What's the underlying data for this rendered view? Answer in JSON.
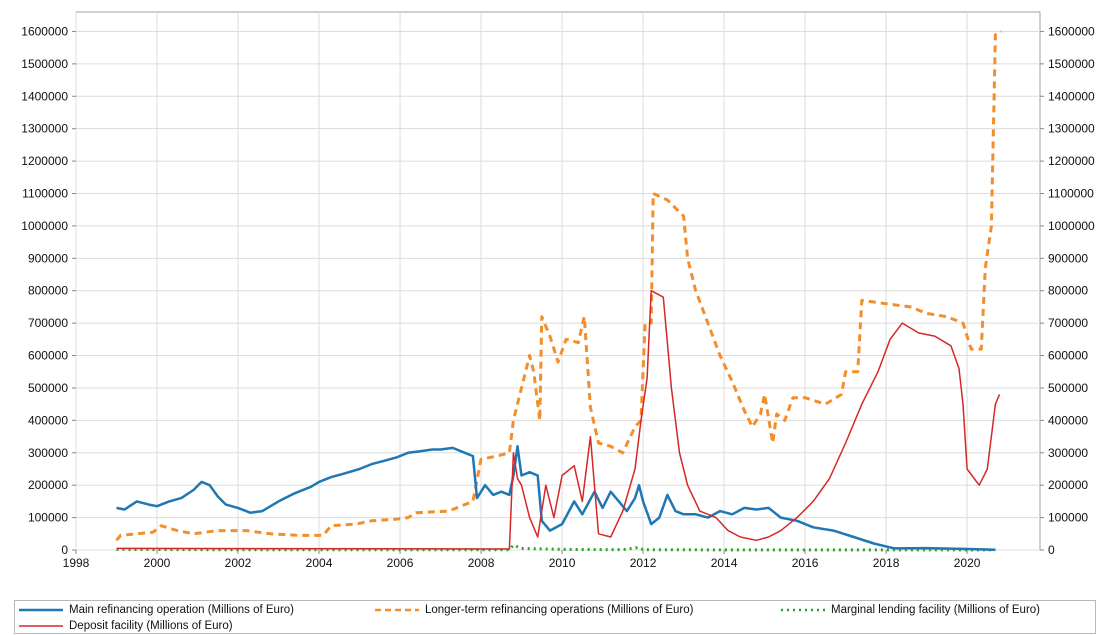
{
  "chart_data": {
    "type": "line",
    "x_ticks": [
      "1998",
      "2000",
      "2002",
      "2004",
      "2006",
      "2008",
      "2010",
      "2012",
      "2014",
      "2016",
      "2018",
      "2020"
    ],
    "y_ticks": [
      "0",
      "100000",
      "200000",
      "300000",
      "400000",
      "500000",
      "600000",
      "700000",
      "800000",
      "900000",
      "1000000",
      "1100000",
      "1200000",
      "1300000",
      "1400000",
      "1500000",
      "1600000"
    ],
    "xlim": [
      1998.0,
      2021.8
    ],
    "ylim": [
      0,
      1660000
    ],
    "grid": true,
    "legend_position": "bottom",
    "series": [
      {
        "name": "Main refinancing operation (Millions of Euro)",
        "color": "#1f77b4",
        "style": "solid",
        "points": [
          [
            1999.0,
            130000
          ],
          [
            1999.2,
            125000
          ],
          [
            1999.5,
            150000
          ],
          [
            1999.8,
            140000
          ],
          [
            2000.0,
            135000
          ],
          [
            2000.3,
            150000
          ],
          [
            2000.6,
            160000
          ],
          [
            2000.9,
            185000
          ],
          [
            2001.1,
            210000
          ],
          [
            2001.3,
            200000
          ],
          [
            2001.5,
            165000
          ],
          [
            2001.7,
            140000
          ],
          [
            2002.0,
            130000
          ],
          [
            2002.3,
            115000
          ],
          [
            2002.6,
            120000
          ],
          [
            2003.0,
            150000
          ],
          [
            2003.4,
            175000
          ],
          [
            2003.8,
            195000
          ],
          [
            2004.0,
            210000
          ],
          [
            2004.3,
            225000
          ],
          [
            2004.6,
            235000
          ],
          [
            2005.0,
            250000
          ],
          [
            2005.3,
            265000
          ],
          [
            2005.6,
            275000
          ],
          [
            2005.9,
            285000
          ],
          [
            2006.2,
            300000
          ],
          [
            2006.5,
            305000
          ],
          [
            2006.8,
            310000
          ],
          [
            2007.0,
            310000
          ],
          [
            2007.3,
            315000
          ],
          [
            2007.6,
            300000
          ],
          [
            2007.8,
            290000
          ],
          [
            2007.9,
            160000
          ],
          [
            2008.1,
            200000
          ],
          [
            2008.3,
            170000
          ],
          [
            2008.5,
            180000
          ],
          [
            2008.7,
            170000
          ],
          [
            2008.8,
            230000
          ],
          [
            2008.9,
            320000
          ],
          [
            2009.0,
            230000
          ],
          [
            2009.2,
            240000
          ],
          [
            2009.4,
            230000
          ],
          [
            2009.5,
            90000
          ],
          [
            2009.7,
            60000
          ],
          [
            2010.0,
            80000
          ],
          [
            2010.3,
            150000
          ],
          [
            2010.5,
            110000
          ],
          [
            2010.8,
            180000
          ],
          [
            2011.0,
            130000
          ],
          [
            2011.2,
            180000
          ],
          [
            2011.4,
            150000
          ],
          [
            2011.6,
            120000
          ],
          [
            2011.8,
            160000
          ],
          [
            2011.9,
            200000
          ],
          [
            2012.0,
            150000
          ],
          [
            2012.2,
            80000
          ],
          [
            2012.4,
            100000
          ],
          [
            2012.6,
            170000
          ],
          [
            2012.8,
            120000
          ],
          [
            2013.0,
            110000
          ],
          [
            2013.3,
            110000
          ],
          [
            2013.6,
            100000
          ],
          [
            2013.9,
            120000
          ],
          [
            2014.2,
            110000
          ],
          [
            2014.5,
            130000
          ],
          [
            2014.8,
            125000
          ],
          [
            2015.1,
            130000
          ],
          [
            2015.4,
            100000
          ],
          [
            2015.8,
            90000
          ],
          [
            2016.2,
            70000
          ],
          [
            2016.7,
            60000
          ],
          [
            2017.2,
            40000
          ],
          [
            2017.7,
            20000
          ],
          [
            2018.2,
            5000
          ],
          [
            2019.0,
            6000
          ],
          [
            2020.0,
            3000
          ],
          [
            2020.7,
            1000
          ]
        ]
      },
      {
        "name": "Longer-term refinancing operations (Millions of Euro)",
        "color": "#f28e2b",
        "style": "dashed",
        "points": [
          [
            1999.0,
            30000
          ],
          [
            1999.1,
            45000
          ],
          [
            1999.5,
            50000
          ],
          [
            1999.9,
            55000
          ],
          [
            2000.1,
            75000
          ],
          [
            2000.5,
            60000
          ],
          [
            2000.9,
            50000
          ],
          [
            2001.2,
            55000
          ],
          [
            2001.5,
            60000
          ],
          [
            2002.2,
            60000
          ],
          [
            2002.8,
            50000
          ],
          [
            2003.5,
            45000
          ],
          [
            2004.1,
            45000
          ],
          [
            2004.3,
            75000
          ],
          [
            2004.9,
            80000
          ],
          [
            2005.3,
            90000
          ],
          [
            2005.9,
            95000
          ],
          [
            2006.2,
            100000
          ],
          [
            2006.4,
            115000
          ],
          [
            2007.2,
            120000
          ],
          [
            2007.6,
            140000
          ],
          [
            2007.8,
            150000
          ],
          [
            2008.0,
            280000
          ],
          [
            2008.4,
            290000
          ],
          [
            2008.7,
            300000
          ],
          [
            2008.8,
            400000
          ],
          [
            2009.0,
            500000
          ],
          [
            2009.2,
            600000
          ],
          [
            2009.3,
            550000
          ],
          [
            2009.45,
            400000
          ],
          [
            2009.5,
            720000
          ],
          [
            2009.7,
            660000
          ],
          [
            2009.9,
            580000
          ],
          [
            2010.1,
            650000
          ],
          [
            2010.4,
            640000
          ],
          [
            2010.55,
            720000
          ],
          [
            2010.7,
            440000
          ],
          [
            2010.9,
            330000
          ],
          [
            2011.2,
            320000
          ],
          [
            2011.5,
            300000
          ],
          [
            2011.8,
            380000
          ],
          [
            2011.95,
            400000
          ],
          [
            2012.05,
            700000
          ],
          [
            2012.2,
            700000
          ],
          [
            2012.25,
            1100000
          ],
          [
            2012.6,
            1080000
          ],
          [
            2013.0,
            1030000
          ],
          [
            2013.1,
            900000
          ],
          [
            2013.3,
            800000
          ],
          [
            2013.6,
            700000
          ],
          [
            2013.9,
            600000
          ],
          [
            2014.2,
            520000
          ],
          [
            2014.5,
            430000
          ],
          [
            2014.7,
            380000
          ],
          [
            2014.9,
            420000
          ],
          [
            2015.0,
            480000
          ],
          [
            2015.2,
            330000
          ],
          [
            2015.3,
            420000
          ],
          [
            2015.5,
            400000
          ],
          [
            2015.7,
            470000
          ],
          [
            2016.0,
            470000
          ],
          [
            2016.5,
            450000
          ],
          [
            2016.9,
            480000
          ],
          [
            2017.0,
            550000
          ],
          [
            2017.3,
            550000
          ],
          [
            2017.4,
            770000
          ],
          [
            2018.0,
            760000
          ],
          [
            2018.6,
            750000
          ],
          [
            2019.0,
            730000
          ],
          [
            2019.5,
            720000
          ],
          [
            2019.9,
            700000
          ],
          [
            2020.0,
            660000
          ],
          [
            2020.1,
            620000
          ],
          [
            2020.35,
            620000
          ],
          [
            2020.45,
            870000
          ],
          [
            2020.6,
            1000000
          ],
          [
            2020.7,
            1590000
          ],
          [
            2020.85,
            1600000
          ]
        ]
      },
      {
        "name": "Marginal lending facility (Millions of Euro)",
        "color": "#2ca02c",
        "style": "dotted",
        "points": [
          [
            1999.0,
            2000
          ],
          [
            2002.0,
            500
          ],
          [
            2006.0,
            500
          ],
          [
            2008.7,
            500
          ],
          [
            2008.8,
            15000
          ],
          [
            2009.0,
            5000
          ],
          [
            2010.0,
            2000
          ],
          [
            2011.5,
            1000
          ],
          [
            2011.9,
            8000
          ],
          [
            2012.0,
            1000
          ],
          [
            2013.0,
            500
          ],
          [
            2016.0,
            200
          ],
          [
            2020.7,
            200
          ]
        ]
      },
      {
        "name": "Deposit facility (Millions of Euro)",
        "color": "#d62728",
        "style": "solid",
        "points": [
          [
            1999.0,
            5000
          ],
          [
            2008.7,
            3000
          ],
          [
            2008.8,
            300000
          ],
          [
            2008.9,
            220000
          ],
          [
            2009.0,
            200000
          ],
          [
            2009.2,
            100000
          ],
          [
            2009.4,
            40000
          ],
          [
            2009.6,
            200000
          ],
          [
            2009.8,
            100000
          ],
          [
            2010.0,
            230000
          ],
          [
            2010.3,
            260000
          ],
          [
            2010.5,
            150000
          ],
          [
            2010.7,
            350000
          ],
          [
            2010.9,
            50000
          ],
          [
            2011.2,
            40000
          ],
          [
            2011.5,
            120000
          ],
          [
            2011.8,
            250000
          ],
          [
            2011.95,
            400000
          ],
          [
            2012.1,
            530000
          ],
          [
            2012.2,
            800000
          ],
          [
            2012.5,
            780000
          ],
          [
            2012.7,
            500000
          ],
          [
            2012.9,
            300000
          ],
          [
            2013.1,
            200000
          ],
          [
            2013.4,
            120000
          ],
          [
            2013.8,
            100000
          ],
          [
            2014.1,
            60000
          ],
          [
            2014.4,
            40000
          ],
          [
            2014.8,
            30000
          ],
          [
            2015.1,
            40000
          ],
          [
            2015.4,
            60000
          ],
          [
            2015.8,
            100000
          ],
          [
            2016.2,
            150000
          ],
          [
            2016.6,
            220000
          ],
          [
            2017.0,
            330000
          ],
          [
            2017.4,
            450000
          ],
          [
            2017.8,
            550000
          ],
          [
            2018.1,
            650000
          ],
          [
            2018.4,
            700000
          ],
          [
            2018.8,
            670000
          ],
          [
            2019.2,
            660000
          ],
          [
            2019.6,
            630000
          ],
          [
            2019.8,
            560000
          ],
          [
            2019.9,
            450000
          ],
          [
            2020.0,
            250000
          ],
          [
            2020.3,
            200000
          ],
          [
            2020.5,
            250000
          ],
          [
            2020.7,
            450000
          ],
          [
            2020.8,
            480000
          ]
        ]
      }
    ]
  }
}
